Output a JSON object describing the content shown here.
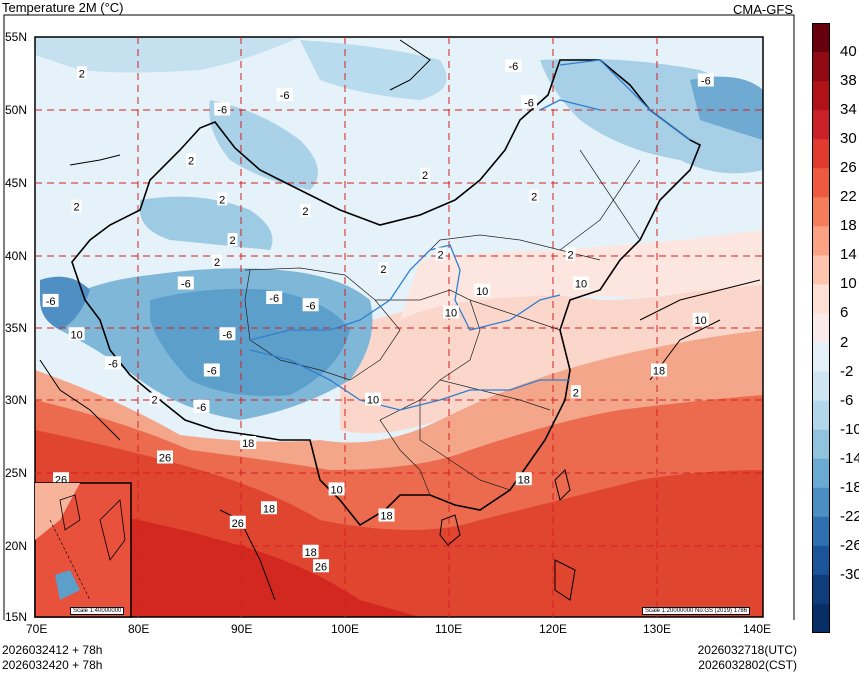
{
  "header": {
    "title": "Temperature  2M (°C)",
    "source": "CMA-GFS"
  },
  "footer": {
    "init_utc": "2026032412 + 78h",
    "init_cst": "2026032420 + 78h",
    "valid_utc": "2026032718(UTC)",
    "valid_cst": "2026032802(CST)"
  },
  "map": {
    "lat_labels": [
      "55N",
      "50N",
      "45N",
      "40N",
      "35N",
      "30N",
      "25N",
      "20N",
      "15N"
    ],
    "lon_labels": [
      "70E",
      "80E",
      "90E",
      "100E",
      "110E",
      "120E",
      "130E",
      "140E"
    ],
    "scale_main": "Scale 1:20000000 No:GS (2019) 1786",
    "scale_inset": "Scale 1:40000000",
    "contour_labels": [
      {
        "text": "2",
        "lon": 74.5,
        "lat": 52.5
      },
      {
        "text": "-6",
        "lon": 88,
        "lat": 50
      },
      {
        "text": "-6",
        "lon": 94,
        "lat": 51
      },
      {
        "text": "2",
        "lon": 85,
        "lat": 46.5
      },
      {
        "text": "2",
        "lon": 74,
        "lat": 43.3
      },
      {
        "text": "2",
        "lon": 88,
        "lat": 43.8
      },
      {
        "text": "2",
        "lon": 96,
        "lat": 43
      },
      {
        "text": "2",
        "lon": 89,
        "lat": 41
      },
      {
        "text": "2",
        "lon": 107.5,
        "lat": 45.5
      },
      {
        "text": "2",
        "lon": 103.5,
        "lat": 39
      },
      {
        "text": "2",
        "lon": 109,
        "lat": 40
      },
      {
        "text": "2",
        "lon": 118,
        "lat": 44
      },
      {
        "text": "2",
        "lon": 121.5,
        "lat": 40
      },
      {
        "text": "2",
        "lon": 87.5,
        "lat": 39.5
      },
      {
        "text": "-6",
        "lon": 116,
        "lat": 53
      },
      {
        "text": "-6",
        "lon": 117.5,
        "lat": 50.5
      },
      {
        "text": "-6",
        "lon": 134.5,
        "lat": 52
      },
      {
        "text": "-6",
        "lon": 71.5,
        "lat": 36.8
      },
      {
        "text": "-6",
        "lon": 84.5,
        "lat": 38
      },
      {
        "text": "-6",
        "lon": 93,
        "lat": 37
      },
      {
        "text": "-6",
        "lon": 96.5,
        "lat": 36.5
      },
      {
        "text": "-6",
        "lon": 88.5,
        "lat": 34.5
      },
      {
        "text": "-6",
        "lon": 77.5,
        "lat": 32.5
      },
      {
        "text": "-6",
        "lon": 87,
        "lat": 32
      },
      {
        "text": "-6",
        "lon": 86,
        "lat": 29.5
      },
      {
        "text": "10",
        "lon": 74,
        "lat": 34.5
      },
      {
        "text": "10",
        "lon": 110,
        "lat": 36
      },
      {
        "text": "10",
        "lon": 113,
        "lat": 37.5
      },
      {
        "text": "10",
        "lon": 122.5,
        "lat": 38
      },
      {
        "text": "10",
        "lon": 134,
        "lat": 35.5
      },
      {
        "text": "10",
        "lon": 102.5,
        "lat": 30
      },
      {
        "text": "10",
        "lon": 99,
        "lat": 23.8
      },
      {
        "text": "2",
        "lon": 122,
        "lat": 30.5
      },
      {
        "text": "2",
        "lon": 81.5,
        "lat": 30
      },
      {
        "text": "18",
        "lon": 90.5,
        "lat": 27
      },
      {
        "text": "18",
        "lon": 117,
        "lat": 24.5
      },
      {
        "text": "18",
        "lon": 130,
        "lat": 32
      },
      {
        "text": "18",
        "lon": 92.5,
        "lat": 22.5
      },
      {
        "text": "18",
        "lon": 96.5,
        "lat": 19.5
      },
      {
        "text": "26",
        "lon": 72.5,
        "lat": 24.5
      },
      {
        "text": "26",
        "lon": 82.5,
        "lat": 26
      },
      {
        "text": "26",
        "lon": 89.5,
        "lat": 21.5
      },
      {
        "text": "26",
        "lon": 97.5,
        "lat": 18.5
      },
      {
        "text": "18",
        "lon": 103.8,
        "lat": 22
      }
    ]
  },
  "colorbar": {
    "labels": [
      "40",
      "38",
      "34",
      "30",
      "26",
      "22",
      "18",
      "14",
      "10",
      "6",
      "2",
      "-2",
      "-6",
      "-10",
      "-14",
      "-18",
      "-22",
      "-26",
      "-30"
    ],
    "colors": [
      "#67000d",
      "#8f0a12",
      "#b01217",
      "#cb2027",
      "#e03b2e",
      "#ee5a3f",
      "#f67d5c",
      "#fba284",
      "#fdc3ac",
      "#fde0d3",
      "#fbeaea",
      "#e4f1f9",
      "#cfe6f2",
      "#b2d6ea",
      "#91c3df",
      "#6aaad3",
      "#4a8ec3",
      "#2f70b0",
      "#1c549a",
      "#0f3d7c",
      "#082e68"
    ]
  }
}
